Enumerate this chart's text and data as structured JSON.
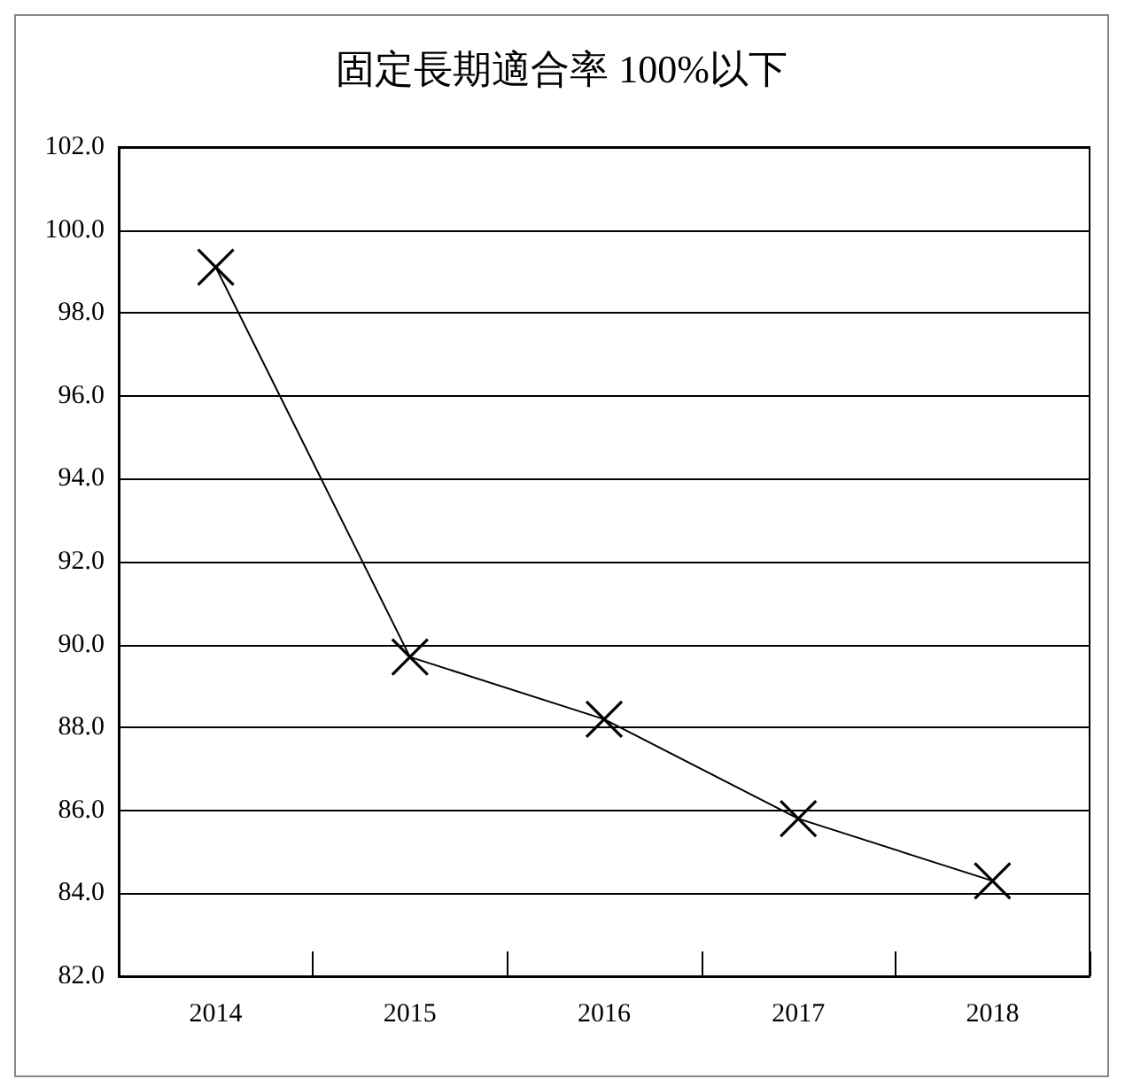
{
  "chart_data": {
    "type": "line",
    "title": "固定長期適合率 100%以下",
    "categories": [
      "2014",
      "2015",
      "2016",
      "2017",
      "2018"
    ],
    "series": [
      {
        "color": "#000000",
        "values": [
          99.1,
          89.7,
          88.2,
          85.8,
          84.3
        ]
      }
    ],
    "ylim": [
      82,
      102
    ],
    "yticks": [
      {
        "value": 82,
        "label": "82.0"
      },
      {
        "value": 84,
        "label": "84.0"
      },
      {
        "value": 86,
        "label": "86.0"
      },
      {
        "value": 88,
        "label": "88.0"
      },
      {
        "value": 90,
        "label": "90.0"
      },
      {
        "value": 92,
        "label": "92.0"
      },
      {
        "value": 94,
        "label": "94.0"
      },
      {
        "value": 96,
        "label": "96.0"
      },
      {
        "value": 98,
        "label": "98.0"
      },
      {
        "value": 100,
        "label": "100.0"
      },
      {
        "value": 102,
        "label": "102.0"
      }
    ],
    "grid": "y",
    "marker": "cross",
    "line_style": "solid"
  }
}
